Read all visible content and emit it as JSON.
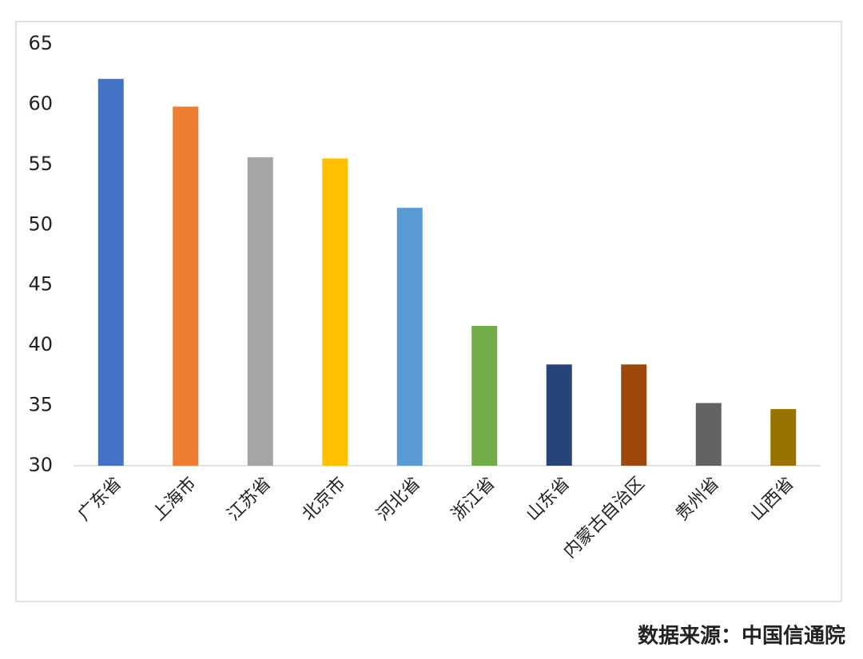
{
  "chart_data": {
    "type": "bar",
    "categories": [
      "广东省",
      "上海市",
      "江苏省",
      "北京市",
      "河北省",
      "浙江省",
      "山东省",
      "内蒙古自治区",
      "贵州省",
      "山西省"
    ],
    "values": [
      62.1,
      59.8,
      55.6,
      55.5,
      51.4,
      41.6,
      38.4,
      38.4,
      35.2,
      34.7
    ],
    "colors": [
      "#4472c4",
      "#ed7d31",
      "#a5a5a5",
      "#ffc000",
      "#5b9bd5",
      "#70ad47",
      "#264478",
      "#9e480e",
      "#636363",
      "#997300"
    ],
    "ylim": [
      30,
      65
    ],
    "yticks": [
      30,
      35,
      40,
      45,
      50,
      55,
      60,
      65
    ],
    "grid": false,
    "source": "数据来源：中国信通院"
  }
}
